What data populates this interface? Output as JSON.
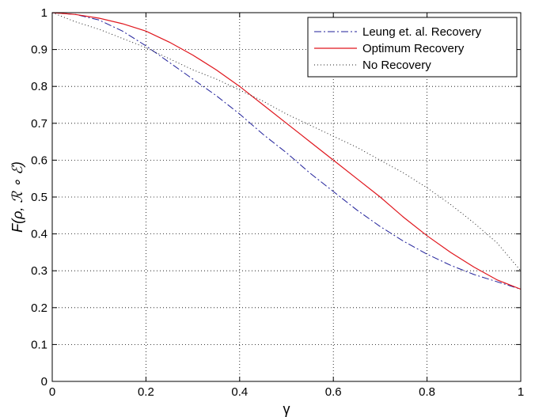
{
  "chart_data": {
    "type": "line",
    "title": "",
    "xlabel": "γ",
    "ylabel": "F(ρ, ℛ ∘ ℰ)",
    "xlim": [
      0,
      1
    ],
    "ylim": [
      0,
      1
    ],
    "xticks": [
      "0",
      "0.2",
      "0.4",
      "0.6",
      "0.8",
      "1"
    ],
    "yticks": [
      "0",
      "0.1",
      "0.2",
      "0.3",
      "0.4",
      "0.5",
      "0.6",
      "0.7",
      "0.8",
      "0.9",
      "1"
    ],
    "grid": true,
    "legend_position": "top-right",
    "series": [
      {
        "name": "Leung et. al. Recovery",
        "style": "dash-dot",
        "color": "#1f1f9a",
        "x": [
          0,
          0.05,
          0.1,
          0.15,
          0.2,
          0.25,
          0.3,
          0.35,
          0.4,
          0.45,
          0.5,
          0.55,
          0.6,
          0.65,
          0.7,
          0.75,
          0.8,
          0.85,
          0.9,
          0.95,
          1
        ],
        "y": [
          1.0,
          0.995,
          0.98,
          0.95,
          0.91,
          0.865,
          0.82,
          0.775,
          0.725,
          0.67,
          0.62,
          0.565,
          0.515,
          0.465,
          0.42,
          0.38,
          0.345,
          0.315,
          0.29,
          0.27,
          0.25
        ]
      },
      {
        "name": "Optimum Recovery",
        "style": "solid",
        "color": "#e0161d",
        "x": [
          0,
          0.05,
          0.1,
          0.15,
          0.2,
          0.25,
          0.3,
          0.35,
          0.4,
          0.45,
          0.5,
          0.55,
          0.6,
          0.65,
          0.7,
          0.75,
          0.8,
          0.85,
          0.9,
          0.95,
          1
        ],
        "y": [
          1.0,
          0.995,
          0.985,
          0.97,
          0.95,
          0.92,
          0.885,
          0.845,
          0.8,
          0.75,
          0.7,
          0.65,
          0.6,
          0.55,
          0.5,
          0.445,
          0.395,
          0.35,
          0.31,
          0.275,
          0.25
        ]
      },
      {
        "name": "No Recovery",
        "style": "dotted",
        "color": "#222222",
        "x": [
          0,
          0.05,
          0.1,
          0.15,
          0.2,
          0.25,
          0.3,
          0.35,
          0.4,
          0.45,
          0.5,
          0.55,
          0.6,
          0.65,
          0.7,
          0.75,
          0.8,
          0.85,
          0.9,
          0.95,
          1
        ],
        "y": [
          1.0,
          0.975,
          0.955,
          0.93,
          0.905,
          0.875,
          0.845,
          0.82,
          0.79,
          0.76,
          0.725,
          0.695,
          0.665,
          0.635,
          0.6,
          0.565,
          0.525,
          0.48,
          0.43,
          0.375,
          0.3
        ]
      }
    ]
  }
}
